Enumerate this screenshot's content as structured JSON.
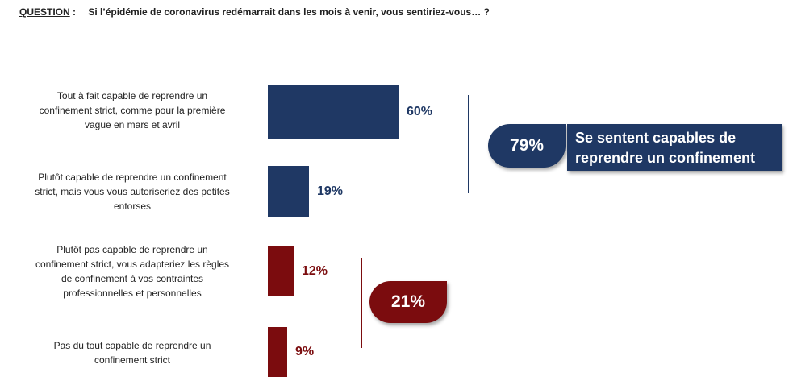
{
  "question": {
    "label": "QUESTION",
    "separator": ":",
    "text": "Si l’épidémie de coronavirus redémarrait dans les mois à venir, vous sentiriez-vous… ?"
  },
  "colors": {
    "blue": "#1F3864",
    "red": "#7B0C0E"
  },
  "chart_data": {
    "type": "bar",
    "orientation": "horizontal",
    "title": "Si l’épidémie de coronavirus redémarrait dans les mois à venir, vous sentiriez-vous… ?",
    "categories": [
      "Tout à fait capable de reprendre un confinement strict, comme pour la première vague en mars et avril",
      "Plutôt capable de reprendre un confinement strict, mais vous vous autoriseriez des petites entorses",
      "Plutôt pas capable de reprendre un confinement strict, vous adapteriez les règles de confinement à vos contraintes professionnelles et personnelles",
      "Pas du tout capable de reprendre un confinement strict"
    ],
    "category_lines": [
      [
        "Tout à fait capable de reprendre un",
        "confinement strict, comme pour la première",
        "vague en mars et avril"
      ],
      [
        "Plutôt capable de reprendre un confinement",
        "strict, mais vous vous autoriseriez des petites",
        "entorses"
      ],
      [
        "Plutôt pas capable de reprendre un",
        "confinement strict, vous adapteriez les règles",
        "de confinement à vos contraintes",
        "professionnelles et personnelles"
      ],
      [
        "Pas du tout capable de reprendre un",
        "confinement strict"
      ]
    ],
    "values": [
      60,
      19,
      12,
      9
    ],
    "value_labels": [
      "60%",
      "19%",
      "12%",
      "9%"
    ],
    "bar_colors": [
      "#1F3864",
      "#1F3864",
      "#7B0C0E",
      "#7B0C0E"
    ],
    "unit": "%",
    "xlim": [
      0,
      100
    ],
    "groups": [
      {
        "name": "capable",
        "value_label": "79%",
        "caption_lines": [
          "Se sentent capables de",
          "reprendre un confinement"
        ],
        "color": "#1F3864"
      },
      {
        "name": "pas capable",
        "value_label": "21%",
        "color": "#7B0C0E"
      }
    ]
  }
}
